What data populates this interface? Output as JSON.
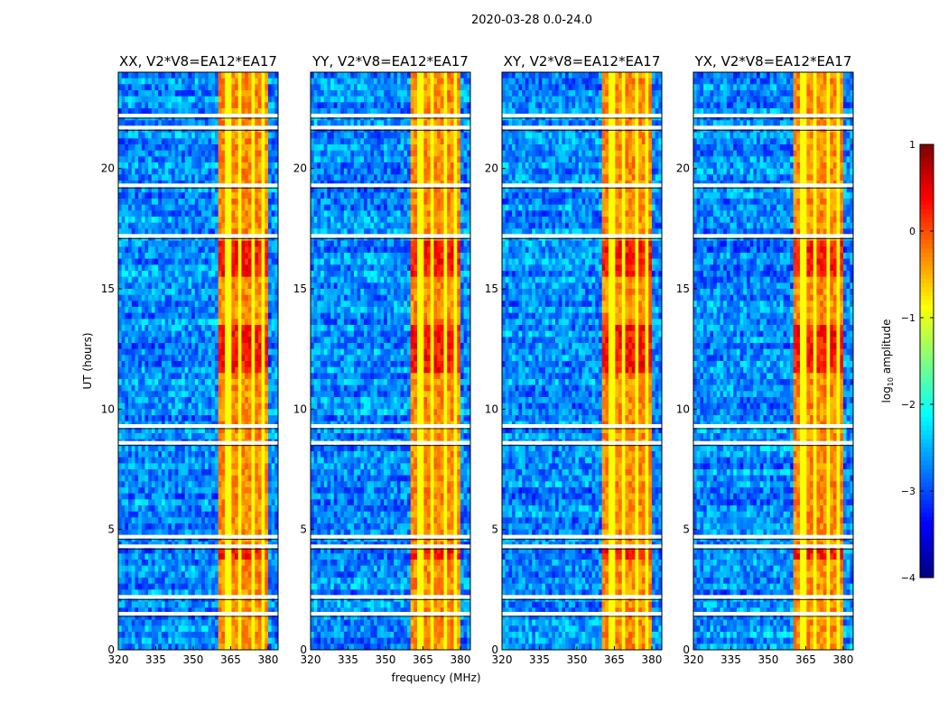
{
  "chart_data": {
    "type": "heatmap",
    "suptitle": "2020-03-28 0.0-24.0",
    "xlabel": "frequency (MHz)",
    "ylabel": "UT (hours)",
    "xlim": [
      320,
      384
    ],
    "ylim": [
      0,
      24
    ],
    "xticks": [
      "320",
      "335",
      "350",
      "365",
      "380"
    ],
    "xtick_values": [
      320,
      335,
      350,
      365,
      380
    ],
    "yticks": [
      "0",
      "5",
      "10",
      "15",
      "20"
    ],
    "ytick_values": [
      0,
      5,
      10,
      15,
      20
    ],
    "panels": [
      {
        "title": "XX, V2*V8=EA12*EA17"
      },
      {
        "title": "YY, V2*V8=EA12*EA17"
      },
      {
        "title": "XY, V2*V8=EA12*EA17"
      },
      {
        "title": "YX, V2*V8=EA12*EA17"
      }
    ],
    "model": {
      "background_log10_amplitude": -2.7,
      "rfi_band_mhz": [
        360,
        380
      ],
      "rfi_log10_amplitude": 0.0,
      "rfi_gap_channels_mhz": [
        364,
        369,
        374,
        378
      ],
      "strong_rfi_hours": [
        [
          11.5,
          13.5
        ],
        [
          15.5,
          17
        ],
        [
          3.8,
          4.2
        ]
      ],
      "flagged_hours": [
        1.5,
        2.2,
        4.3,
        4.7,
        8.6,
        9.3,
        17.2,
        19.3,
        21.7,
        22.2
      ]
    },
    "colorbar": {
      "label": "log10 amplitude",
      "label_main": "log",
      "label_sub": "10",
      "label_rest": " amplitude",
      "range": [
        -4,
        1
      ],
      "ticks": [
        "1",
        "0",
        "−1",
        "−2",
        "−3",
        "−4"
      ],
      "tick_values": [
        1,
        0,
        -1,
        -2,
        -3,
        -4
      ],
      "colormap": "jet"
    }
  }
}
